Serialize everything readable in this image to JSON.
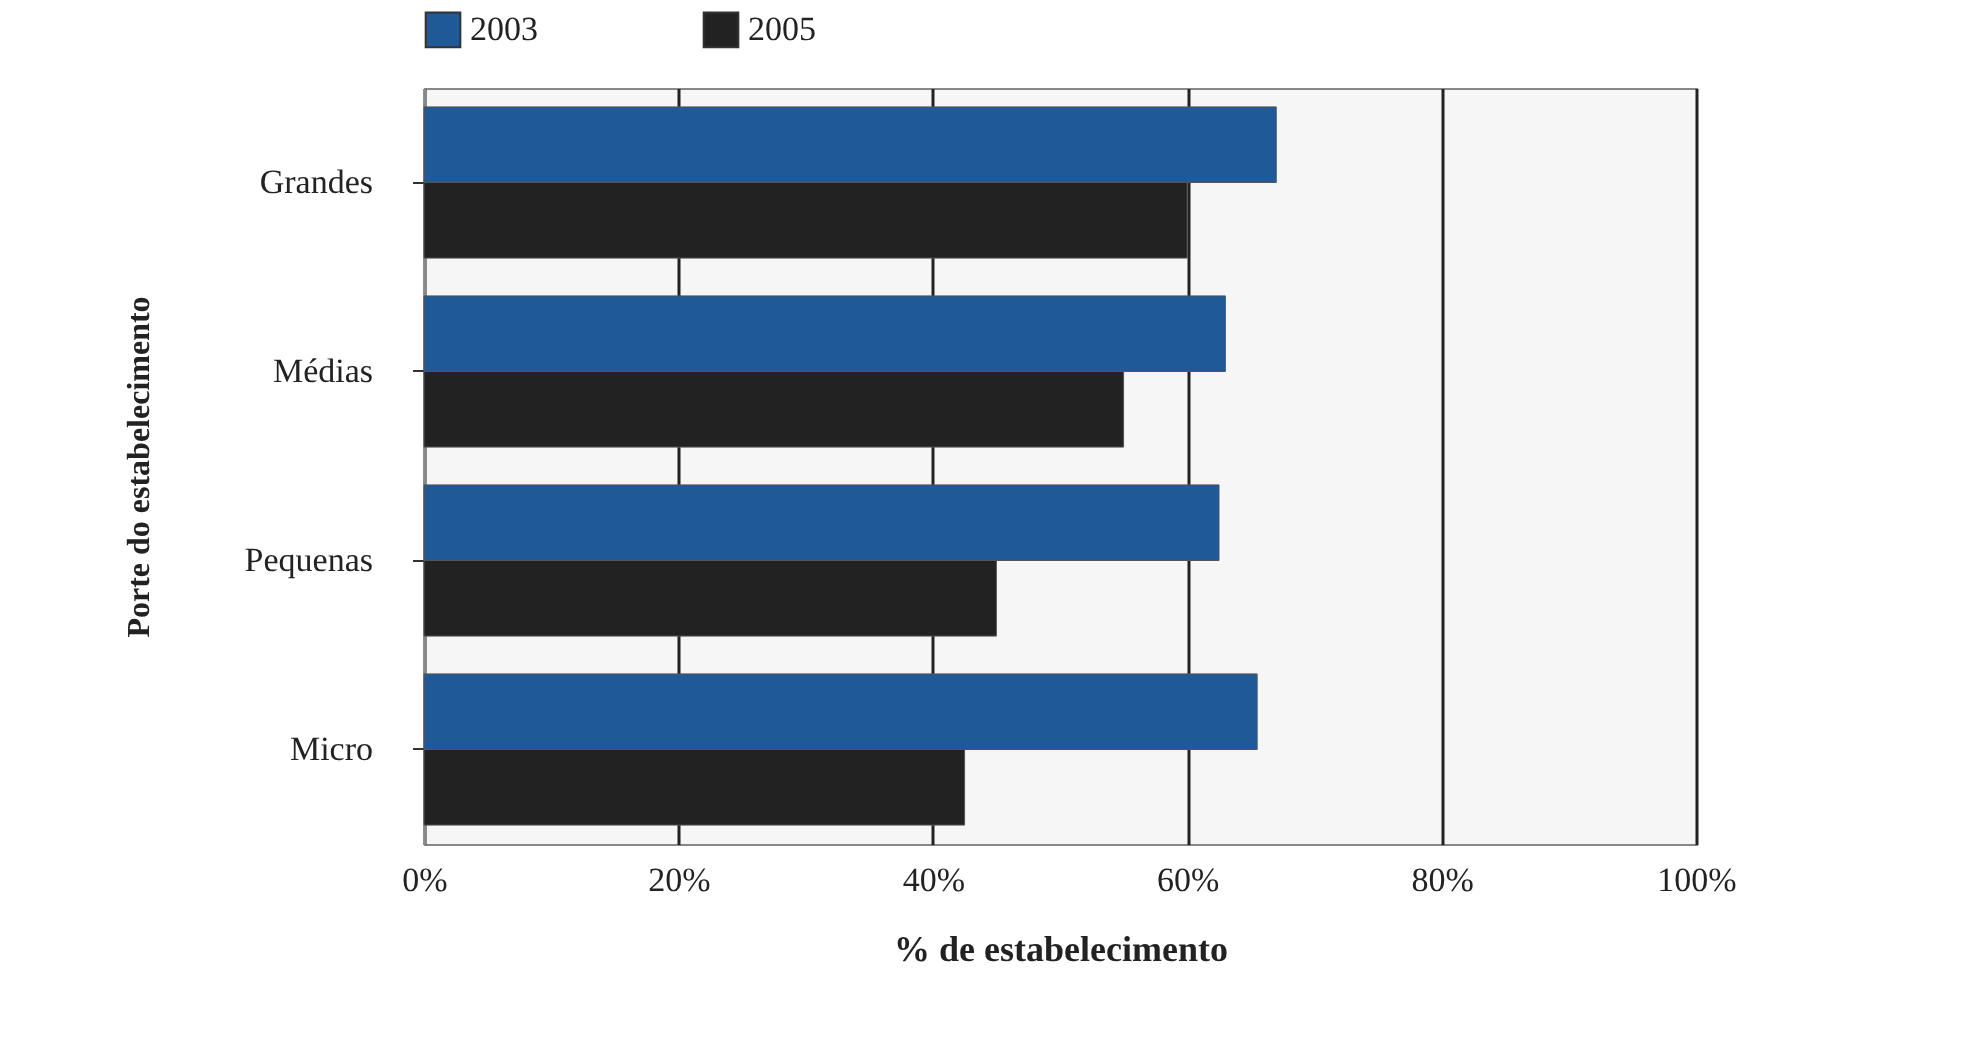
{
  "chart_data": {
    "type": "bar",
    "orientation": "horizontal",
    "xlabel": "% de estabelecimento",
    "ylabel": "Porte do estabelecimento",
    "categories": [
      "Grandes",
      "Médias",
      "Pequenas",
      "Micro"
    ],
    "series": [
      {
        "name": "2003",
        "color": "#1f5a96",
        "values": [
          67,
          63,
          62.5,
          65.5
        ]
      },
      {
        "name": "2005",
        "color": "#222222",
        "values": [
          60,
          55,
          45,
          42.5
        ]
      }
    ],
    "xlim": [
      0,
      100
    ],
    "xticks": [
      {
        "value": 0,
        "label": "0%"
      },
      {
        "value": 20,
        "label": "20%"
      },
      {
        "value": 40,
        "label": "40%"
      },
      {
        "value": 60,
        "label": "60%"
      },
      {
        "value": 80,
        "label": "80%"
      },
      {
        "value": 100,
        "label": "100%"
      }
    ],
    "grid": "x",
    "legend": "top"
  }
}
